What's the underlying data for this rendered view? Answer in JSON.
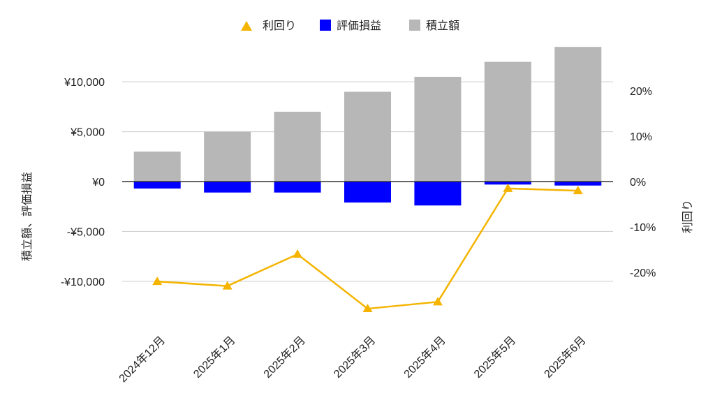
{
  "chart_data": {
    "type": "bar",
    "categories": [
      "2024年12月",
      "2025年1月",
      "2025年2月",
      "2025年3月",
      "2025年4月",
      "2025年5月",
      "2025年6月"
    ],
    "series": [
      {
        "name": "利回り",
        "kind": "line",
        "axis": "right",
        "color": "#f4b400",
        "marker": "triangle",
        "values": [
          -22.0,
          -23.0,
          -16.0,
          -28.0,
          -26.5,
          -1.5,
          -2.0
        ]
      },
      {
        "name": "評価損益",
        "kind": "bar",
        "axis": "left",
        "color": "#0000ff",
        "values": [
          -700,
          -1100,
          -1100,
          -2100,
          -2400,
          -300,
          -400
        ]
      },
      {
        "name": "積立額",
        "kind": "bar",
        "axis": "left",
        "color": "#b7b7b7",
        "values": [
          3000,
          5000,
          7000,
          9000,
          10500,
          12000,
          13500
        ]
      }
    ],
    "ylabel": "積立額、評価損益",
    "y2label": "利回り",
    "ylim": [
      -14700,
      14000
    ],
    "y2lim": [
      -32.3,
      30.8
    ],
    "yticks": [
      -10000,
      -5000,
      0,
      5000,
      10000
    ],
    "ytick_labels": [
      "-¥10,000",
      "-¥5,000",
      "¥0",
      "¥5,000",
      "¥10,000"
    ],
    "y2ticks": [
      -20,
      -10,
      0,
      10,
      20
    ],
    "y2tick_labels": [
      "-20%",
      "-10%",
      "0%",
      "10%",
      "20%"
    ],
    "grid": true,
    "legend": "top-center"
  }
}
